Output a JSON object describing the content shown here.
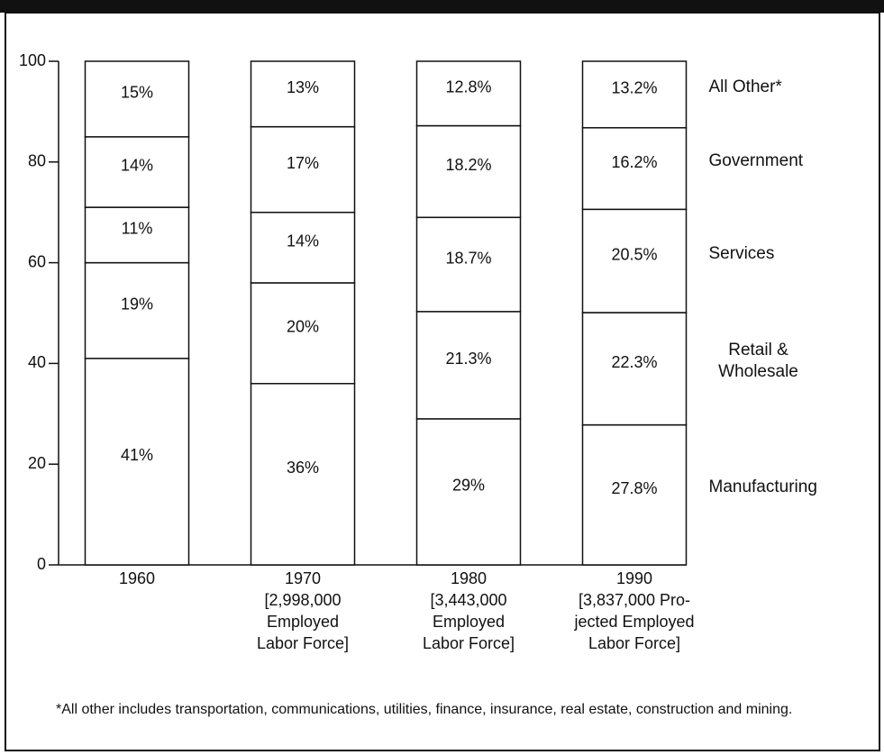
{
  "chart_data": {
    "type": "stacked-bar",
    "categories": [
      [
        "1960"
      ],
      [
        "1970",
        "[2,998,000",
        "Employed",
        "Labor Force]"
      ],
      [
        "1980",
        "[3,443,000",
        "Employed",
        "Labor Force]"
      ],
      [
        "1990",
        "[3,837,000 Pro-",
        "jected Employed",
        "Labor Force]"
      ]
    ],
    "series": [
      {
        "name": "Manufacturing",
        "color": "#ffffff",
        "values": [
          41,
          36,
          29,
          27.8
        ],
        "value_labels": [
          "41%",
          "36%",
          "29%",
          "27.8%"
        ]
      },
      {
        "name": "Retail & Wholesale",
        "color": "#ffffff",
        "values": [
          19,
          20,
          21.3,
          22.3
        ],
        "value_labels": [
          "19%",
          "20%",
          "21.3%",
          "22.3%"
        ]
      },
      {
        "name": "Services",
        "color": "#ffffff",
        "values": [
          11,
          14,
          18.7,
          20.5
        ],
        "value_labels": [
          "11%",
          "14%",
          "18.7%",
          "20.5%"
        ]
      },
      {
        "name": "Government",
        "color": "#ffffff",
        "values": [
          14,
          17,
          18.2,
          16.2
        ],
        "value_labels": [
          "14%",
          "17%",
          "18.2%",
          "16.2%"
        ]
      },
      {
        "name": "All Other*",
        "color": "#ffffff",
        "values": [
          15,
          13,
          12.8,
          13.2
        ],
        "value_labels": [
          "15%",
          "13%",
          "12.8%",
          "13.2%"
        ]
      }
    ],
    "ylim": [
      0,
      100
    ],
    "yticks": [
      0,
      20,
      40,
      60,
      80,
      100
    ],
    "note": "*All other includes transportation, communications, utilities, finance, insurance, real estate, construction and mining."
  }
}
